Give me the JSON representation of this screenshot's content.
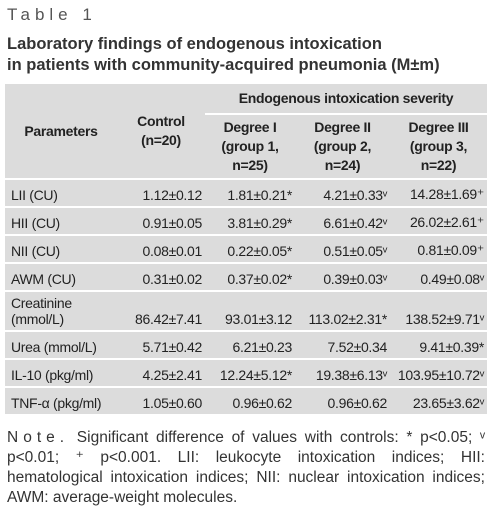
{
  "label": "Table 1",
  "title": [
    "Laboratory findings of endogenous intoxication",
    "in patients with community-acquired pneumonia (M±m)"
  ],
  "table": {
    "group_header": "Endogenous intoxication severity",
    "columns": [
      [
        "Parameters"
      ],
      [
        "Control",
        "(n=20)"
      ],
      [
        "Degree I",
        "(group 1,",
        "n=25)"
      ],
      [
        "Degree II",
        "(group 2,",
        "n=24)"
      ],
      [
        "Degree III",
        "(group 3,",
        "n=22)"
      ]
    ],
    "rows": [
      [
        "LII (CU)",
        "1.12±0.12",
        "1.81±0.21*",
        "4.21±0.33ᵛ",
        "14.28±1.69⁺"
      ],
      [
        "HII (CU)",
        "0.91±0.05",
        "3.81±0.29*",
        "6.61±0.42ᵛ",
        "26.02±2.61⁺"
      ],
      [
        "NII (CU)",
        "0.08±0.01",
        "0.22±0.05*",
        "0.51±0.05ᵛ",
        "0.81±0.09⁺"
      ],
      [
        "AWM (CU)",
        "0.31±0.02",
        "0.37±0.02*",
        "0.39±0.03ᵛ",
        "0.49±0.08ᵛ"
      ],
      [
        "Creatinine (mmol/L)",
        "86.42±7.41",
        "93.01±3.12",
        "113.02±2.31*",
        "138.52±9.71ᵛ"
      ],
      [
        "Urea (mmol/L)",
        "5.71±0.42",
        "6.21±0.23",
        "7.52±0.34",
        "9.41±0.39*"
      ],
      [
        "IL-10 (pkg/ml)",
        "4.25±2.41",
        "12.24±5.12*",
        "19.38±6.13ᵛ",
        "103.95±10.72ᵛ"
      ],
      [
        "TNF-α (pkg/ml)",
        "1.05±0.60",
        "0.96±0.62",
        "0.96±0.62",
        "23.65±3.62ᵛ"
      ]
    ]
  },
  "note": {
    "label": "Note.",
    "text": "Significant difference of values with controls: * p<0.05; ᵛ p<0.01; ⁺ p<0.001. LII: leukocyte intoxication indices; HII: hematological intoxication indices; NII: nuclear intoxication indices; AWM: average-weight molecules."
  }
}
